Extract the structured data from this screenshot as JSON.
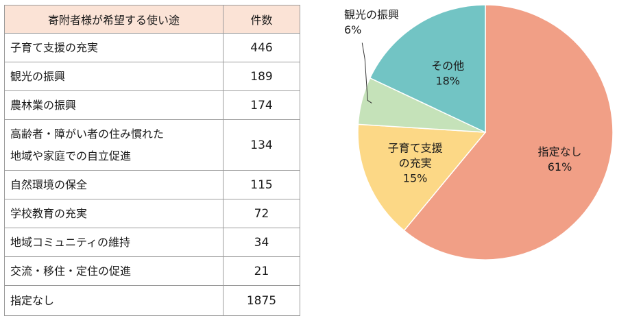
{
  "table": {
    "headers": [
      "寄附者様が希望する使い途",
      "件数"
    ],
    "rows": [
      {
        "label": [
          "子育て支援の充実"
        ],
        "count": "446"
      },
      {
        "label": [
          "観光の振興"
        ],
        "count": "189"
      },
      {
        "label": [
          "農林業の振興"
        ],
        "count": "174"
      },
      {
        "label": [
          "高齢者・障がい者の住み慣れた",
          "地域や家庭での自立促進"
        ],
        "count": "134"
      },
      {
        "label": [
          "自然環境の保全"
        ],
        "count": "115"
      },
      {
        "label": [
          "学校教育の充実"
        ],
        "count": "72"
      },
      {
        "label": [
          "地域コミュニティの維持"
        ],
        "count": "34"
      },
      {
        "label": [
          "交流・移住・定住の促進"
        ],
        "count": "21"
      },
      {
        "label": [
          "指定なし"
        ],
        "count": "1875"
      }
    ]
  },
  "chart_data": {
    "type": "pie",
    "slices": [
      {
        "label": "指定なし",
        "value": 61,
        "display": "61%",
        "color": "#f19f86"
      },
      {
        "label": "子育て支援の充実",
        "value": 15,
        "display": "15%",
        "color": "#fcd886"
      },
      {
        "label": "観光の振興",
        "value": 6,
        "display": "6%",
        "color": "#c5e2b9"
      },
      {
        "label": "その他",
        "value": 18,
        "display": "18%",
        "color": "#72c4c4"
      }
    ]
  }
}
